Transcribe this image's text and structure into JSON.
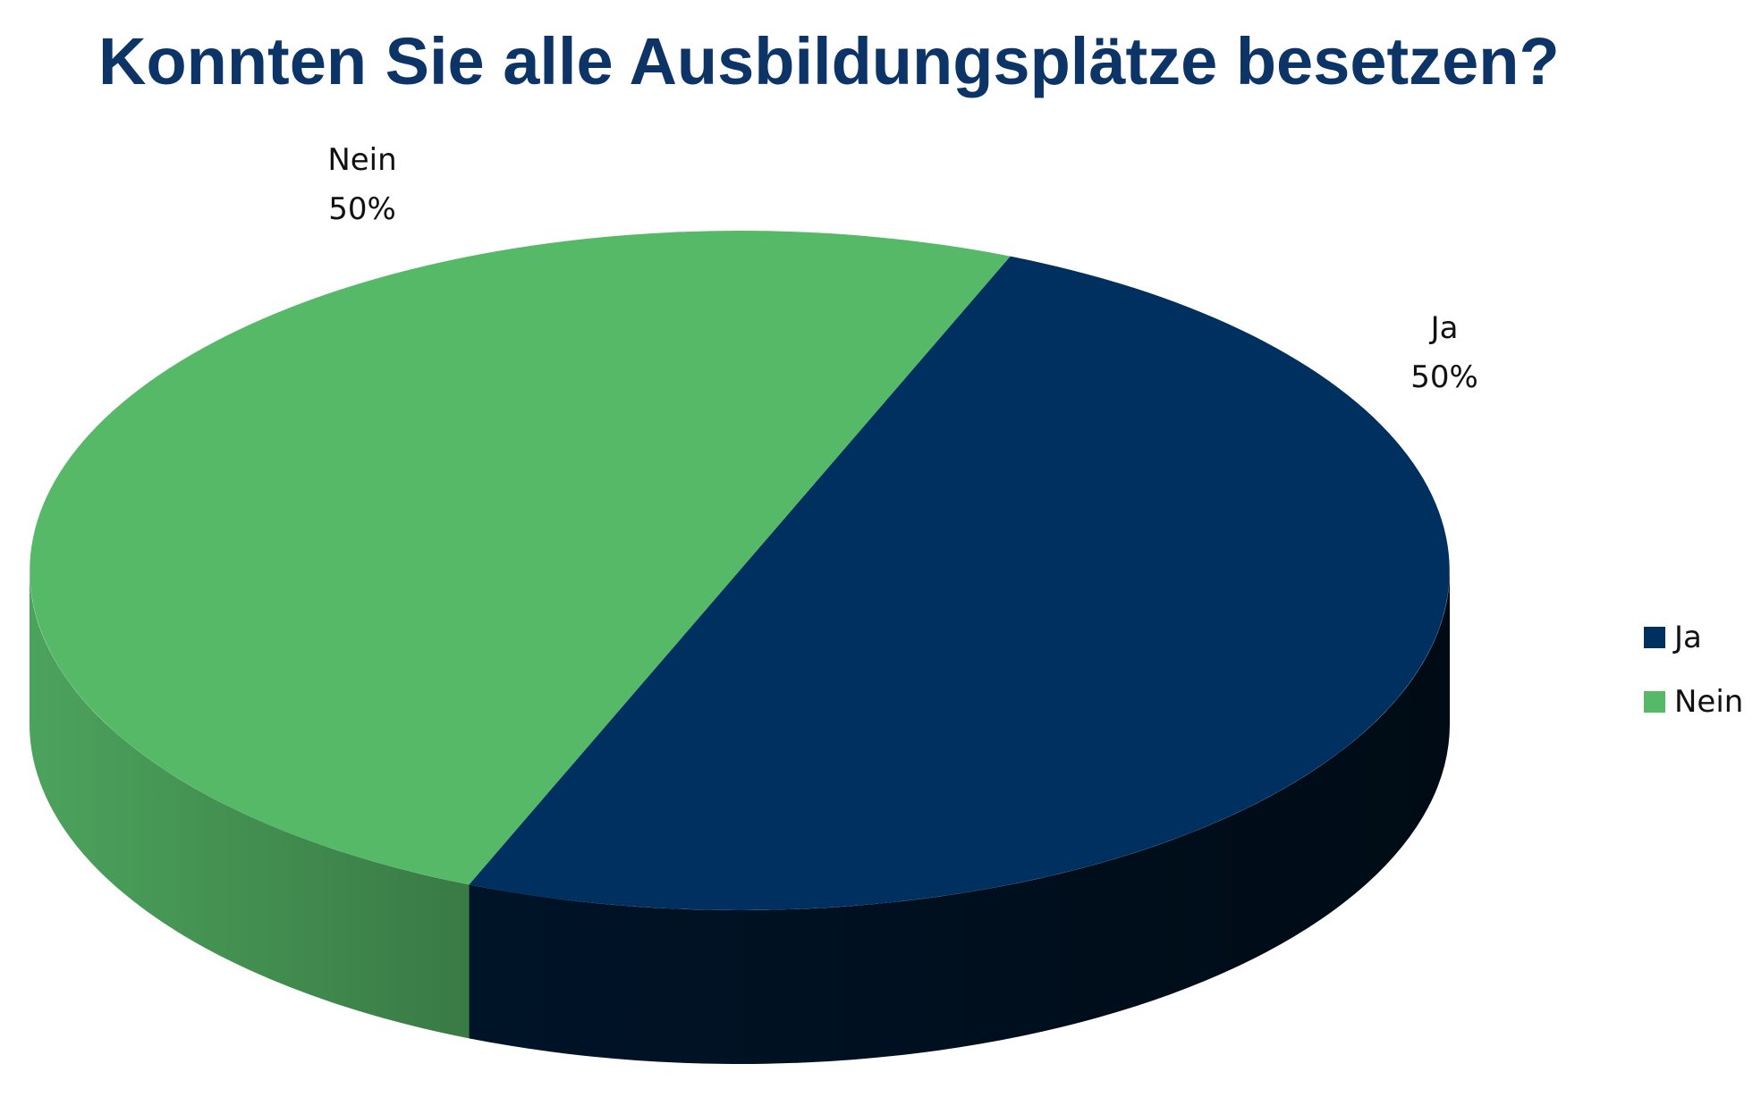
{
  "chart_data": {
    "type": "pie",
    "title": "Konnten Sie alle Ausbildungsplätze besetzen?",
    "categories": [
      "Ja",
      "Nein"
    ],
    "values": [
      50,
      50
    ],
    "data_labels": [
      {
        "name": "Ja",
        "percent": "50%"
      },
      {
        "name": "Nein",
        "percent": "50%"
      }
    ],
    "colors": [
      "#003060",
      "#56b968"
    ],
    "style": "3d",
    "legend": {
      "placement": "right",
      "items": [
        {
          "label": "Ja",
          "color": "#003060"
        },
        {
          "label": "Nein",
          "color": "#56b968"
        }
      ]
    }
  }
}
